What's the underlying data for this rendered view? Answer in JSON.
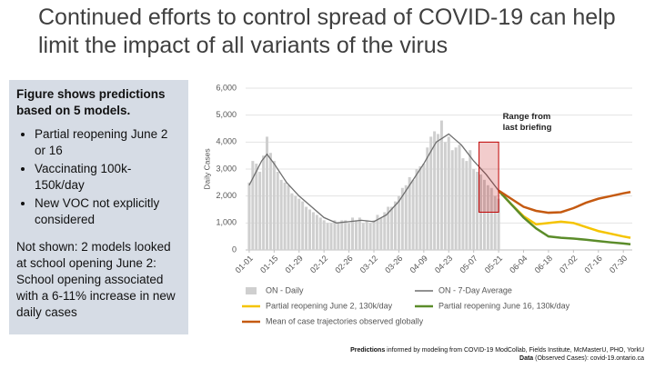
{
  "title": "Continued efforts to control spread of COVID-19 can help limit the impact of all variants of the virus",
  "panel": {
    "heading": "Figure shows predictions based on 5 models.",
    "bullets": [
      "Partial reopening June 2 or 16",
      "Vaccinating 100k-150k/day",
      "New VOC not explicitly considered"
    ],
    "note": "Not shown: 2 models looked at school opening June 2: School opening associated with a 6-11% increase in new daily cases"
  },
  "chart_data": {
    "type": "combo",
    "y_label": "Daily Cases",
    "xlim": [
      -2,
      215
    ],
    "ylim": [
      0,
      6000
    ],
    "xticks": [
      {
        "value": 0,
        "label": "01-01"
      },
      {
        "value": 14,
        "label": "01-15"
      },
      {
        "value": 28,
        "label": "01-29"
      },
      {
        "value": 42,
        "label": "02-12"
      },
      {
        "value": 56,
        "label": "02-26"
      },
      {
        "value": 70,
        "label": "03-12"
      },
      {
        "value": 84,
        "label": "03-26"
      },
      {
        "value": 98,
        "label": "04-09"
      },
      {
        "value": 112,
        "label": "04-23"
      },
      {
        "value": 126,
        "label": "05-07"
      },
      {
        "value": 140,
        "label": "05-21"
      },
      {
        "value": 154,
        "label": "06-04"
      },
      {
        "value": 168,
        "label": "06-18"
      },
      {
        "value": 182,
        "label": "07-02"
      },
      {
        "value": 196,
        "label": "07-16"
      },
      {
        "value": 210,
        "label": "07-30"
      }
    ],
    "yticks": [
      0,
      {
        "value": 1000,
        "label": "1,000"
      },
      {
        "value": 2000,
        "label": "2,000"
      },
      {
        "value": 3000,
        "label": "3,000"
      },
      {
        "value": 4000,
        "label": "4,000"
      },
      {
        "value": 5000,
        "label": "5,000"
      },
      {
        "value": 6000,
        "label": "6,000"
      }
    ],
    "grid": true,
    "series": [
      {
        "name": "ON - Daily",
        "type": "bar",
        "color": "#cfcfcf",
        "x": [
          0,
          2,
          4,
          6,
          8,
          10,
          12,
          14,
          16,
          18,
          20,
          22,
          24,
          26,
          28,
          30,
          32,
          34,
          36,
          38,
          40,
          42,
          44,
          46,
          48,
          50,
          52,
          54,
          56,
          58,
          60,
          62,
          64,
          66,
          68,
          70,
          72,
          74,
          76,
          78,
          80,
          82,
          84,
          86,
          88,
          90,
          92,
          94,
          96,
          98,
          100,
          102,
          104,
          106,
          108,
          110,
          112,
          114,
          116,
          118,
          120,
          122,
          124,
          126,
          128,
          130,
          132,
          134,
          136,
          138,
          140
        ],
        "values": [
          2500,
          3300,
          3200,
          2900,
          3500,
          4200,
          3600,
          3300,
          2900,
          2600,
          2500,
          2400,
          2100,
          2000,
          1900,
          1800,
          1600,
          1500,
          1400,
          1300,
          1200,
          1100,
          1000,
          1000,
          1100,
          1000,
          1100,
          1100,
          1000,
          1200,
          1100,
          1200,
          1000,
          1100,
          1000,
          1100,
          1300,
          1200,
          1400,
          1600,
          1600,
          1800,
          2000,
          2300,
          2400,
          2700,
          2600,
          3000,
          3100,
          3200,
          3800,
          4200,
          4400,
          4300,
          4800,
          4000,
          4200,
          3700,
          3800,
          3900,
          3400,
          3300,
          3700,
          3000,
          2900,
          2800,
          2600,
          2400,
          2300,
          2000,
          1900
        ]
      },
      {
        "name": "ON - 7-Day Average",
        "type": "line",
        "color": "#6e6e6e",
        "x": [
          0,
          7,
          10,
          14,
          21,
          28,
          35,
          42,
          49,
          56,
          63,
          70,
          77,
          84,
          91,
          98,
          105,
          112,
          119,
          126,
          133,
          140
        ],
        "values": [
          2400,
          3300,
          3550,
          3200,
          2500,
          2000,
          1600,
          1200,
          1000,
          1050,
          1100,
          1050,
          1300,
          1800,
          2500,
          3200,
          4000,
          4300,
          3900,
          3300,
          2800,
          2200
        ]
      },
      {
        "name": "Partial reopening June 2, 130k/day",
        "type": "line",
        "color": "#f5c400",
        "x": [
          140,
          147,
          154,
          161,
          168,
          175,
          182,
          189,
          196,
          203,
          210,
          214
        ],
        "values": [
          2200,
          1700,
          1250,
          950,
          1000,
          1050,
          1000,
          850,
          700,
          600,
          500,
          450
        ]
      },
      {
        "name": "Partial reopening June 16, 130k/day",
        "type": "line",
        "color": "#5b8c2a",
        "x": [
          140,
          147,
          154,
          161,
          168,
          175,
          182,
          189,
          196,
          203,
          210,
          214
        ],
        "values": [
          2200,
          1700,
          1200,
          800,
          500,
          450,
          420,
          380,
          330,
          280,
          240,
          210
        ]
      },
      {
        "name": "Mean of case trajectories observed globally",
        "type": "line",
        "color": "#c55a11",
        "x": [
          140,
          147,
          154,
          161,
          168,
          175,
          182,
          189,
          196,
          203,
          210,
          214
        ],
        "values": [
          2200,
          1900,
          1600,
          1450,
          1380,
          1400,
          1550,
          1750,
          1900,
          2000,
          2100,
          2150
        ]
      }
    ],
    "range_box": {
      "label": "Range from last briefing",
      "x": [
        129,
        140
      ],
      "y": [
        1400,
        4000
      ],
      "color": "#c00000"
    }
  },
  "footer": [
    {
      "bold": "Predictions",
      "text": "informed by modeling from COVID-19 ModCollab, Fields Institute, McMasterU, PHO, YorkU"
    },
    {
      "bold": "Data",
      "text": "(Observed Cases): covid-19.ontario.ca"
    }
  ]
}
